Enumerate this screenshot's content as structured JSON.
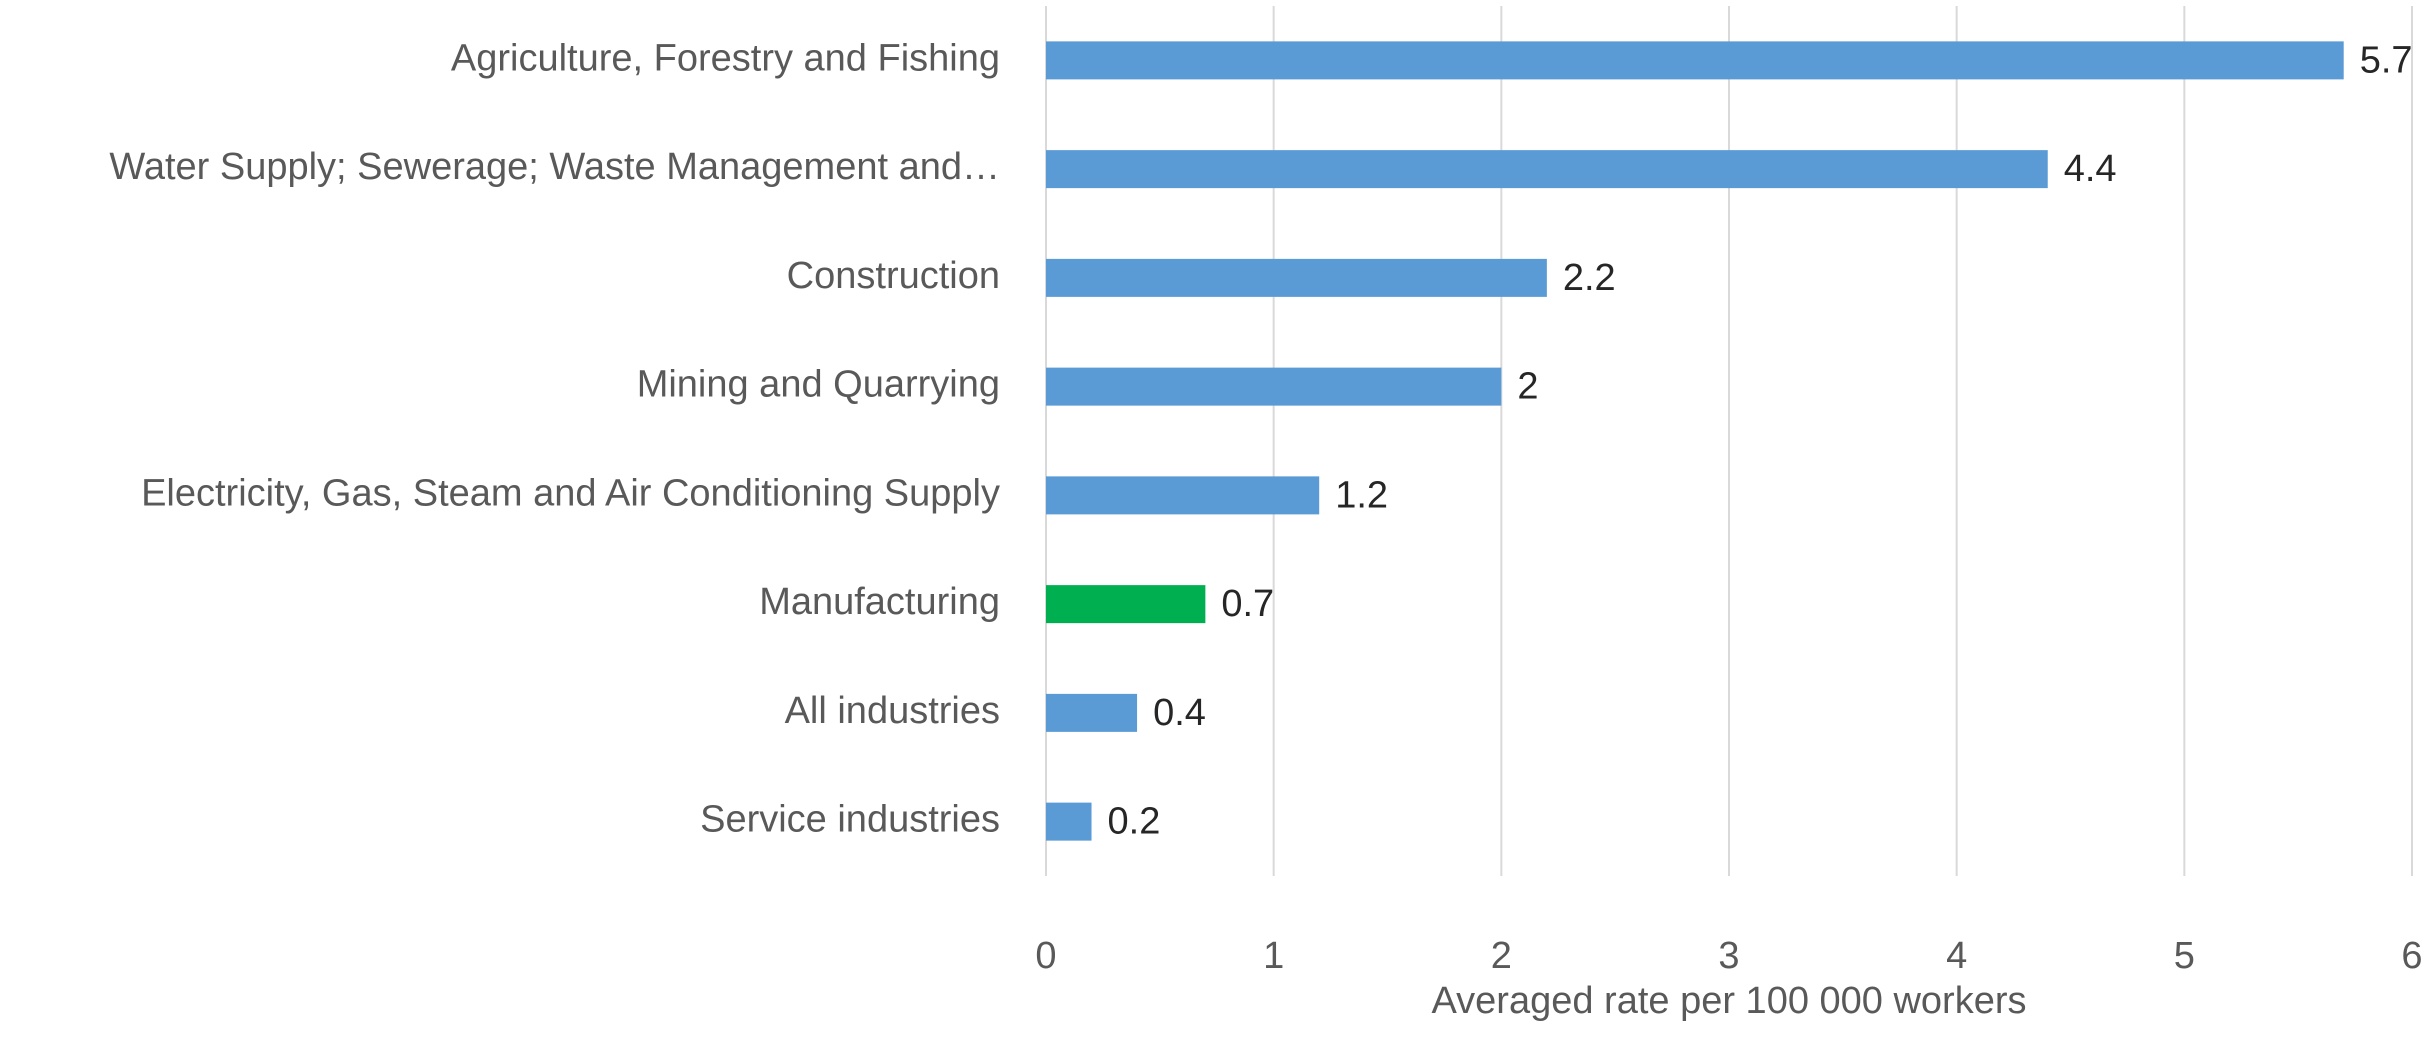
{
  "chart_data": {
    "type": "hbar",
    "categories": [
      "Agriculture, Forestry and Fishing",
      "Water Supply; Sewerage; Waste Management and…",
      "Construction",
      "Mining and Quarrying",
      "Electricity, Gas, Steam and Air Conditioning Supply",
      "Manufacturing",
      "All industries",
      "Service industries"
    ],
    "values": [
      5.7,
      4.4,
      2.2,
      2,
      1.2,
      0.7,
      0.4,
      0.2
    ],
    "colors": [
      "#5b9bd5",
      "#5b9bd5",
      "#5b9bd5",
      "#5b9bd5",
      "#5b9bd5",
      "#00b050",
      "#5b9bd5",
      "#5b9bd5"
    ],
    "xlabel": "Averaged rate per 100 000 workers",
    "xlim": [
      0,
      6
    ],
    "xticks": [
      0,
      1,
      2,
      3,
      4,
      5,
      6
    ],
    "grid": true
  }
}
